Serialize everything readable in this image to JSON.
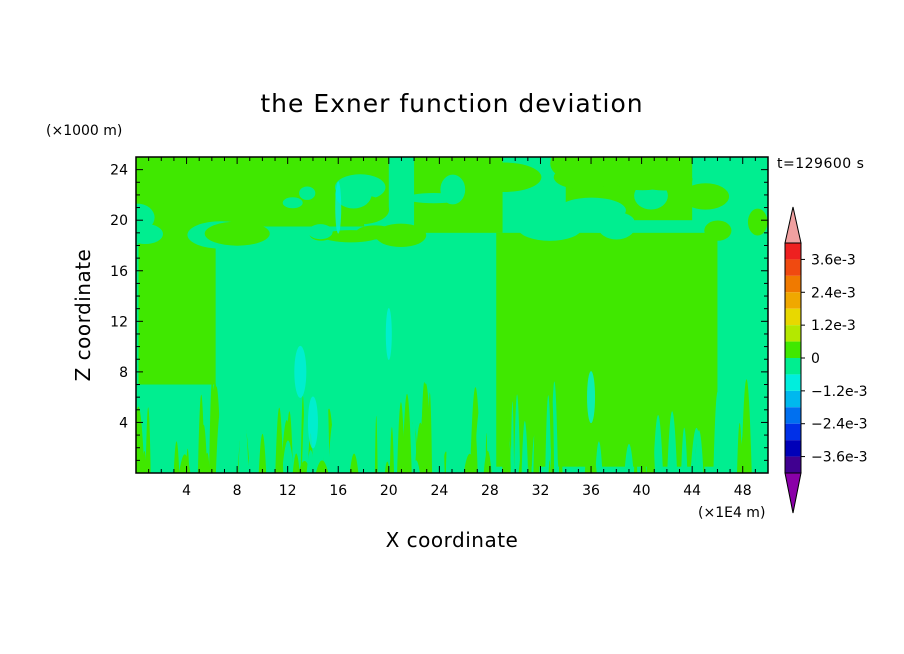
{
  "chart_data": {
    "type": "heatmap",
    "title": "the Exner function deviation",
    "xlabel": "X coordinate",
    "ylabel": "Z coordinate",
    "x_unit": "(×1E4 m)",
    "y_unit": "(×1000 m)",
    "time_label": "t=129600 s",
    "xlim": [
      0,
      50
    ],
    "ylim": [
      0,
      25
    ],
    "x_ticks": [
      4,
      8,
      12,
      16,
      20,
      24,
      28,
      32,
      36,
      40,
      44,
      48
    ],
    "y_ticks": [
      4,
      8,
      12,
      16,
      20,
      24
    ],
    "colorbar": {
      "labels": [
        {
          "text": "3.6e-3",
          "value": 0.0036
        },
        {
          "text": "2.4e-3",
          "value": 0.0024
        },
        {
          "text": "1.2e-3",
          "value": 0.0012
        },
        {
          "text": "0",
          "value": 0
        },
        {
          "text": "−1.2e-3",
          "value": -0.0012
        },
        {
          "text": "−2.4e-3",
          "value": -0.0024
        },
        {
          "text": "−3.6e-3",
          "value": -0.0036
        }
      ],
      "min": -0.0042,
      "max": 0.0042,
      "levels": [
        {
          "from": 0.0036,
          "to": 0.0042,
          "color": "#ee2020"
        },
        {
          "from": 0.003,
          "to": 0.0036,
          "color": "#f04a10"
        },
        {
          "from": 0.0024,
          "to": 0.003,
          "color": "#f07a00"
        },
        {
          "from": 0.0018,
          "to": 0.0024,
          "color": "#f0a800"
        },
        {
          "from": 0.0012,
          "to": 0.0018,
          "color": "#e8d800"
        },
        {
          "from": 0.0006,
          "to": 0.0012,
          "color": "#b4e800"
        },
        {
          "from": 0,
          "to": 0.0006,
          "color": "#40e800"
        },
        {
          "from": -0.0006,
          "to": 0,
          "color": "#00ee90"
        },
        {
          "from": -0.0012,
          "to": -0.0006,
          "color": "#00eedd"
        },
        {
          "from": -0.0018,
          "to": -0.0012,
          "color": "#00b8ee"
        },
        {
          "from": -0.0024,
          "to": -0.0018,
          "color": "#0070f0"
        },
        {
          "from": -0.003,
          "to": -0.0024,
          "color": "#0030e8"
        },
        {
          "from": -0.0036,
          "to": -0.003,
          "color": "#0000b8"
        },
        {
          "from": -0.0042,
          "to": -0.0036,
          "color": "#400090"
        }
      ],
      "over_color": "#f0a0a0",
      "under_color": "#8a00a8"
    },
    "field_colors": {
      "positive_small": "#40e800",
      "negative_small": "#00ee90",
      "negative_mid": "#00eedd"
    },
    "field_regions": [
      {
        "level": "negative_small",
        "x": [
          0,
          50
        ],
        "z": [
          0,
          25
        ]
      },
      {
        "level": "positive_small",
        "x": [
          0.2,
          6.3
        ],
        "z": [
          7,
          21
        ]
      },
      {
        "level": "positive_small",
        "x": [
          28.5,
          46
        ],
        "z": [
          0.5,
          19
        ]
      },
      {
        "level": "positive_small",
        "x": [
          22,
          29
        ],
        "z": [
          19,
          25
        ]
      },
      {
        "level": "positive_small",
        "x": [
          0,
          20
        ],
        "z": [
          19.5,
          25
        ]
      },
      {
        "level": "positive_small",
        "x": [
          34,
          44
        ],
        "z": [
          20,
          25
        ]
      }
    ]
  }
}
